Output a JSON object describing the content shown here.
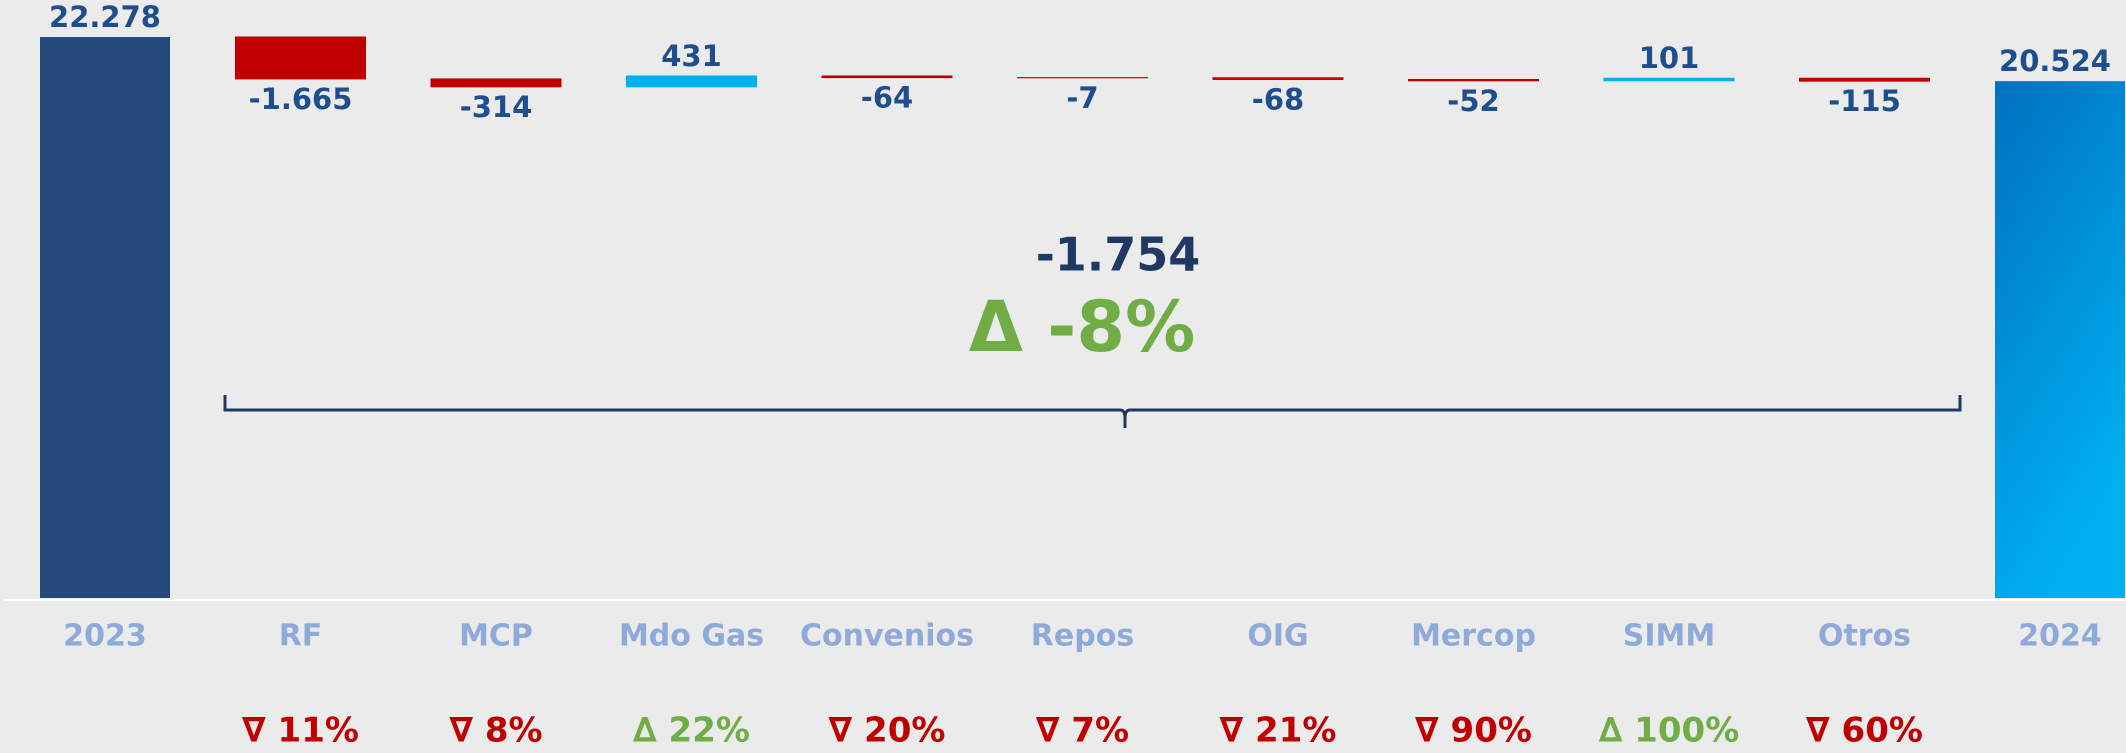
{
  "chart_data": {
    "type": "waterfall",
    "categories": [
      "2023",
      "RF",
      "MCP",
      "Mdo Gas",
      "Convenios",
      "Repos",
      "OIG",
      "Mercop",
      "SIMM",
      "Otros",
      "2024"
    ],
    "values": [
      22278,
      -1665,
      -314,
      431,
      -64,
      -7,
      -68,
      -52,
      101,
      -115,
      20524
    ],
    "value_labels": [
      "22.278",
      "-1.665",
      "-314",
      "431",
      "-64",
      "-7",
      "-68",
      "-52",
      "101",
      "-115",
      "20.524"
    ],
    "change_labels": [
      null,
      "∇ 11%",
      "∇ 8%",
      "∆ 22%",
      "∇ 20%",
      "∇ 7%",
      "∇ 21%",
      "∇ 90%",
      "∆ 100%",
      "∇ 60%",
      null
    ],
    "total_change": "-1.754",
    "total_change_pct": "Δ -8%",
    "colors": {
      "start": "#234a7b",
      "end": "#0a7fd0",
      "increase": "#00b0f0",
      "decrease": "#c00000",
      "up_text": "#70ad47",
      "down_text": "#c00000"
    }
  }
}
